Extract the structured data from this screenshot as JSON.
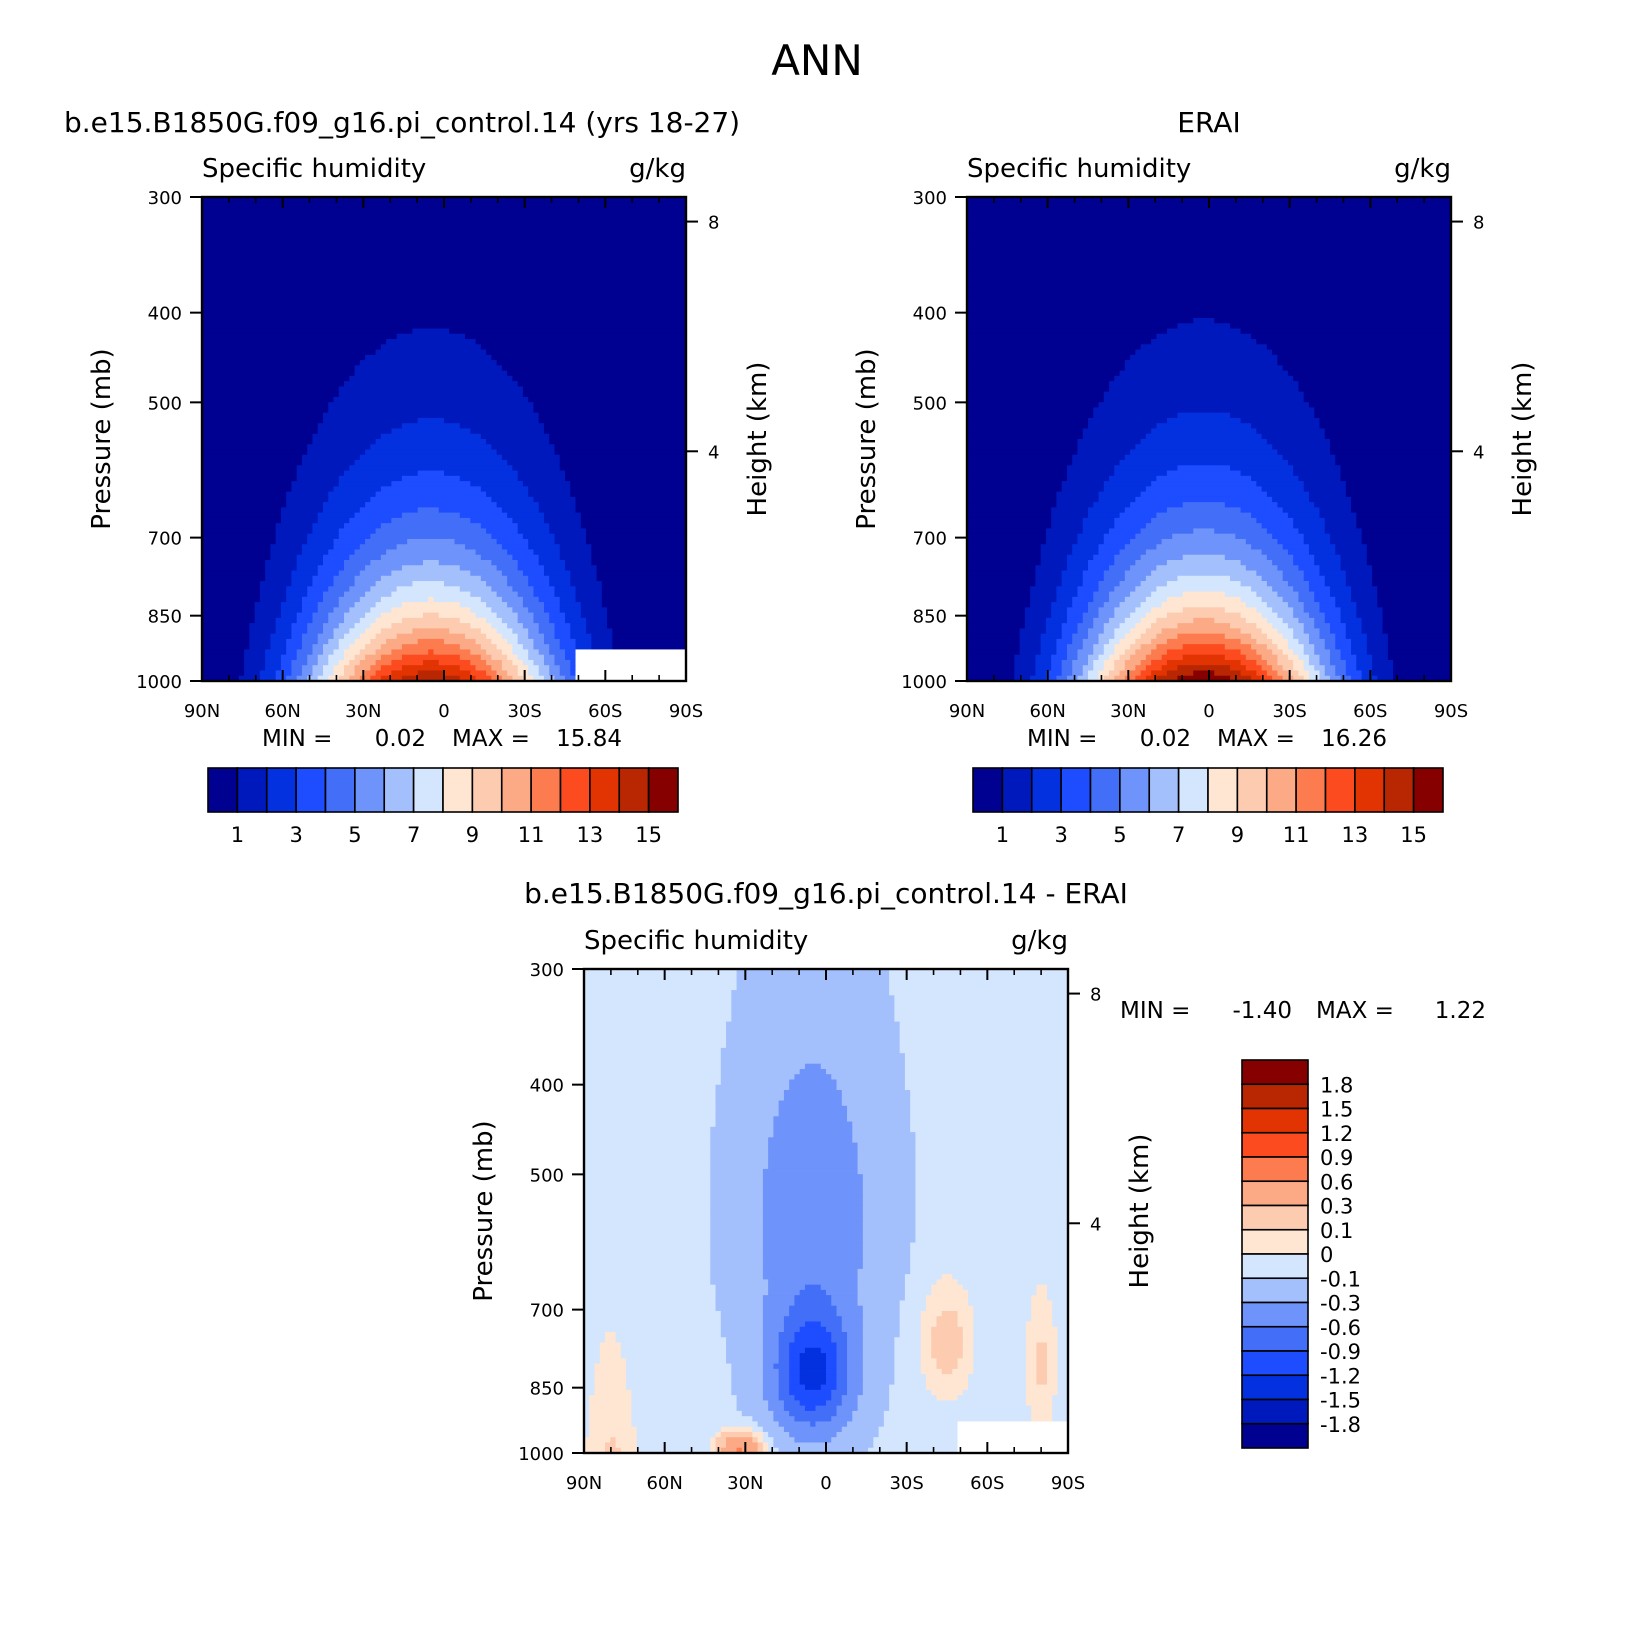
{
  "figure": {
    "title": "ANN"
  },
  "colors": {
    "palette": [
      "#000091",
      "#0019bd",
      "#0331e0",
      "#1d4dff",
      "#436ff8",
      "#6e93fb",
      "#a4c0fc",
      "#d3e6fd",
      "#fee6d2",
      "#fccbb0",
      "#fcaa86",
      "#fc7b4f",
      "#fb4b1f",
      "#e23303",
      "#b82602",
      "#860000"
    ],
    "missing": "#ffffff"
  },
  "chart_data": [
    {
      "id": "model",
      "type": "heatmap",
      "title": "b.e15.B1850G.f09_g16.pi_control.14 (yrs 18-27)",
      "left_label": "Specific humidity",
      "right_label": "g/kg",
      "xlabel": "",
      "ylabel": "Pressure (mb)",
      "y2label": "Height (km)",
      "x_ticks": [
        "90N",
        "60N",
        "30N",
        "0",
        "30S",
        "60S",
        "90S"
      ],
      "y_ticks": [
        "300",
        "400",
        "500",
        "700",
        "850",
        "1000"
      ],
      "y2_ticks": [
        "8",
        "4"
      ],
      "x_range": [
        90,
        -90
      ],
      "y_range": [
        1000,
        300
      ],
      "log_pressure": true,
      "min_label": "MIN =",
      "min_value": "0.02",
      "max_label": "MAX =",
      "max_value": "15.84",
      "min_max_values": {
        "min": 0.02,
        "max": 15.84
      },
      "levels": [
        1,
        2,
        3,
        4,
        5,
        6,
        7,
        8,
        9,
        10,
        11,
        12,
        13,
        14,
        15
      ],
      "colorbar_labels": [
        "1",
        "3",
        "5",
        "7",
        "9",
        "11",
        "13",
        "15"
      ],
      "colorbar_orientation": "horizontal",
      "surface_q": 15.0,
      "equator_peak_lat": 5,
      "missing_region": {
        "lat_from": -48,
        "lat_to": -90,
        "p_below": 920
      }
    },
    {
      "id": "obs",
      "type": "heatmap",
      "title": "ERAI",
      "left_label": "Specific humidity",
      "right_label": "g/kg",
      "xlabel": "",
      "ylabel": "Pressure (mb)",
      "y2label": "Height (km)",
      "x_ticks": [
        "90N",
        "60N",
        "30N",
        "0",
        "30S",
        "60S",
        "90S"
      ],
      "y_ticks": [
        "300",
        "400",
        "500",
        "700",
        "850",
        "1000"
      ],
      "y2_ticks": [
        "8",
        "4"
      ],
      "x_range": [
        90,
        -90
      ],
      "y_range": [
        1000,
        300
      ],
      "log_pressure": true,
      "min_label": "MIN =",
      "min_value": "0.02",
      "max_label": "MAX =",
      "max_value": "16.26",
      "min_max_values": {
        "min": 0.02,
        "max": 16.26
      },
      "levels": [
        1,
        2,
        3,
        4,
        5,
        6,
        7,
        8,
        9,
        10,
        11,
        12,
        13,
        14,
        15
      ],
      "colorbar_labels": [
        "1",
        "3",
        "5",
        "7",
        "9",
        "11",
        "13",
        "15"
      ],
      "colorbar_orientation": "horizontal",
      "surface_q": 16.0,
      "equator_peak_lat": 2
    },
    {
      "id": "diff",
      "type": "heatmap",
      "title": "b.e15.B1850G.f09_g16.pi_control.14 - ERAI",
      "left_label": "Specific humidity",
      "right_label": "g/kg",
      "xlabel": "",
      "ylabel": "Pressure (mb)",
      "y2label": "Height (km)",
      "x_ticks": [
        "90N",
        "60N",
        "30N",
        "0",
        "30S",
        "60S",
        "90S"
      ],
      "y_ticks": [
        "300",
        "400",
        "500",
        "700",
        "850",
        "1000"
      ],
      "y2_ticks": [
        "8",
        "4"
      ],
      "x_range": [
        90,
        -90
      ],
      "y_range": [
        1000,
        300
      ],
      "log_pressure": true,
      "min_label": "MIN =",
      "min_value": "-1.40",
      "max_label": "MAX =",
      "max_value": "1.22",
      "min_max_values": {
        "min": -1.4,
        "max": 1.22
      },
      "levels": [
        -1.8,
        -1.5,
        -1.2,
        -0.9,
        -0.6,
        -0.3,
        -0.1,
        0,
        0.1,
        0.3,
        0.6,
        0.9,
        1.2,
        1.5,
        1.8
      ],
      "colorbar_labels": [
        "1.8",
        "1.5",
        "1.2",
        "0.9",
        "0.6",
        "0.3",
        "0.1",
        "0",
        "-0.1",
        "-0.3",
        "-0.6",
        "-0.9",
        "-1.2",
        "-1.5",
        "-1.8"
      ],
      "colorbar_orientation": "vertical",
      "missing_region": {
        "lat_from": -48,
        "lat_to": -90,
        "p_below": 920
      }
    }
  ]
}
